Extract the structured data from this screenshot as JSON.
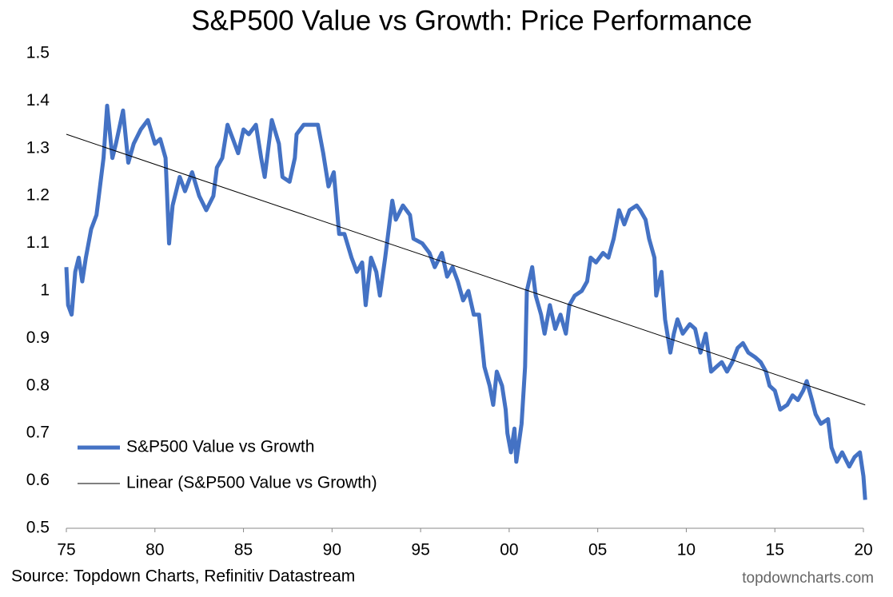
{
  "chart_data": {
    "type": "line",
    "title": "S&P500 Value vs Growth: Price Performance",
    "source": "Source: Topdown Charts, Refinitiv Datastream",
    "watermark": "topdowncharts.com",
    "legend": "lower left",
    "grid": false,
    "xlim": [
      1975,
      2020
    ],
    "xticks": [
      {
        "value": 1975,
        "label": "75"
      },
      {
        "value": 1980,
        "label": "80"
      },
      {
        "value": 1985,
        "label": "85"
      },
      {
        "value": 1990,
        "label": "90"
      },
      {
        "value": 1995,
        "label": "95"
      },
      {
        "value": 2000,
        "label": "00"
      },
      {
        "value": 2005,
        "label": "05"
      },
      {
        "value": 2010,
        "label": "10"
      },
      {
        "value": 2015,
        "label": "15"
      },
      {
        "value": 2020,
        "label": "20"
      }
    ],
    "ylim": [
      0.5,
      1.5
    ],
    "yticks": [
      0.5,
      0.6,
      0.7,
      0.8,
      0.9,
      1,
      1.1,
      1.2,
      1.3,
      1.4,
      1.5
    ],
    "series": [
      {
        "name": "S&P500 Value vs Growth",
        "color": "#4472c4",
        "width": 5,
        "x": [
          1975.0,
          1975.1,
          1975.3,
          1975.5,
          1975.7,
          1975.9,
          1976.1,
          1976.4,
          1976.7,
          1976.9,
          1977.1,
          1977.3,
          1977.6,
          1977.8,
          1978.2,
          1978.5,
          1978.8,
          1979.2,
          1979.6,
          1980.0,
          1980.3,
          1980.6,
          1980.8,
          1981.0,
          1981.4,
          1981.7,
          1982.1,
          1982.5,
          1982.9,
          1983.3,
          1983.5,
          1983.8,
          1984.1,
          1984.4,
          1984.7,
          1985.0,
          1985.3,
          1985.7,
          1986.0,
          1986.2,
          1986.6,
          1987.0,
          1987.2,
          1987.6,
          1987.9,
          1988.0,
          1988.4,
          1988.9,
          1989.2,
          1989.5,
          1989.8,
          1990.1,
          1990.4,
          1990.7,
          1991.1,
          1991.4,
          1991.7,
          1991.9,
          1992.2,
          1992.5,
          1992.7,
          1993.0,
          1993.4,
          1993.6,
          1994.0,
          1994.4,
          1994.6,
          1995.1,
          1995.5,
          1995.8,
          1996.2,
          1996.5,
          1996.8,
          1997.1,
          1997.4,
          1997.7,
          1998.0,
          1998.3,
          1998.6,
          1998.9,
          1999.1,
          1999.3,
          1999.6,
          1999.8,
          1999.9,
          2000.1,
          2000.3,
          2000.4,
          2000.7,
          2000.9,
          2001.0,
          2001.3,
          2001.5,
          2001.8,
          2002.0,
          2002.3,
          2002.6,
          2002.9,
          2003.2,
          2003.4,
          2003.7,
          2004.1,
          2004.4,
          2004.6,
          2004.9,
          2005.3,
          2005.6,
          2005.9,
          2006.2,
          2006.5,
          2006.8,
          2007.2,
          2007.4,
          2007.7,
          2007.9,
          2008.2,
          2008.3,
          2008.6,
          2008.8,
          2009.1,
          2009.3,
          2009.5,
          2009.8,
          2010.2,
          2010.5,
          2010.8,
          2011.1,
          2011.4,
          2011.7,
          2012.0,
          2012.3,
          2012.6,
          2012.9,
          2013.2,
          2013.5,
          2013.9,
          2014.2,
          2014.5,
          2014.7,
          2015.0,
          2015.3,
          2015.7,
          2016.0,
          2016.3,
          2016.6,
          2016.8,
          2017.1,
          2017.3,
          2017.6,
          2018.0,
          2018.2,
          2018.5,
          2018.8,
          2019.2,
          2019.5,
          2019.8,
          2020.0,
          2020.1
        ],
        "values": [
          1.05,
          0.97,
          0.95,
          1.04,
          1.07,
          1.02,
          1.07,
          1.13,
          1.16,
          1.22,
          1.28,
          1.39,
          1.28,
          1.31,
          1.38,
          1.27,
          1.31,
          1.34,
          1.36,
          1.31,
          1.32,
          1.28,
          1.1,
          1.18,
          1.24,
          1.21,
          1.25,
          1.2,
          1.17,
          1.2,
          1.26,
          1.28,
          1.35,
          1.32,
          1.29,
          1.34,
          1.33,
          1.35,
          1.28,
          1.24,
          1.36,
          1.31,
          1.24,
          1.23,
          1.28,
          1.33,
          1.35,
          1.35,
          1.35,
          1.29,
          1.22,
          1.25,
          1.12,
          1.12,
          1.07,
          1.04,
          1.06,
          0.97,
          1.07,
          1.04,
          0.99,
          1.07,
          1.19,
          1.15,
          1.18,
          1.16,
          1.11,
          1.1,
          1.08,
          1.05,
          1.08,
          1.03,
          1.05,
          1.02,
          0.98,
          1.0,
          0.95,
          0.95,
          0.84,
          0.8,
          0.76,
          0.83,
          0.8,
          0.75,
          0.7,
          0.66,
          0.71,
          0.64,
          0.72,
          0.84,
          1.0,
          1.05,
          0.99,
          0.95,
          0.91,
          0.97,
          0.92,
          0.95,
          0.91,
          0.97,
          0.99,
          1.0,
          1.02,
          1.07,
          1.06,
          1.08,
          1.07,
          1.11,
          1.17,
          1.14,
          1.17,
          1.18,
          1.17,
          1.15,
          1.11,
          1.07,
          0.99,
          1.04,
          0.94,
          0.87,
          0.91,
          0.94,
          0.91,
          0.93,
          0.92,
          0.87,
          0.91,
          0.83,
          0.84,
          0.85,
          0.83,
          0.85,
          0.88,
          0.89,
          0.87,
          0.86,
          0.85,
          0.83,
          0.8,
          0.79,
          0.75,
          0.76,
          0.78,
          0.77,
          0.79,
          0.81,
          0.77,
          0.74,
          0.72,
          0.73,
          0.67,
          0.64,
          0.66,
          0.63,
          0.65,
          0.66,
          0.61,
          0.56
        ]
      },
      {
        "name": "Linear (S&P500 Value vs Growth)",
        "color": "#000000",
        "width": 1,
        "x": [
          1975.0,
          2020.1
        ],
        "values": [
          1.33,
          0.76
        ]
      }
    ]
  }
}
